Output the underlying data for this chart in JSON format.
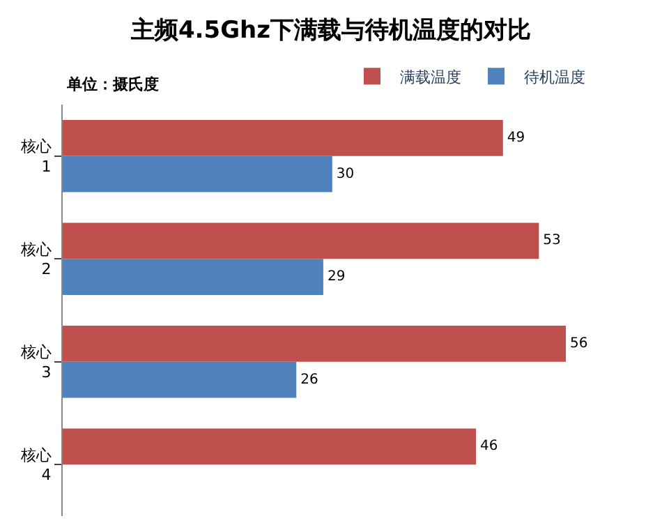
{
  "chart_data": {
    "type": "bar",
    "orientation": "horizontal",
    "title": "主频4.5Ghz下满载与待机温度的对比",
    "annotations": [
      "单位：摄氏度"
    ],
    "categories": [
      "核心\n1",
      "核心\n2",
      "核心\n3",
      "核心\n4"
    ],
    "series": [
      {
        "name": "满载温度",
        "color": "#c0504d",
        "values": [
          49,
          53,
          56,
          46
        ]
      },
      {
        "name": "待机温度",
        "color": "#4f81bd",
        "values": [
          30,
          29,
          26,
          null
        ]
      }
    ],
    "data_labels": true,
    "legend": "top right",
    "tick_labels": "y"
  }
}
